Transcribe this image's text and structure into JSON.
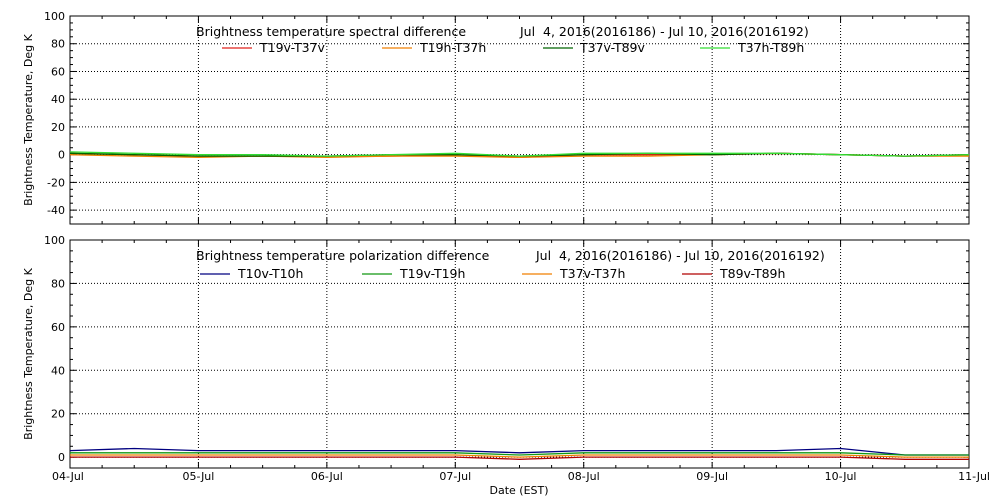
{
  "charts": [
    {
      "title": "Brightness temperature spectral difference",
      "date_range": "Jul  4, 2016(2016186) - Jul 10, 2016(2016192)",
      "ylabel": "Brightness Temperature, Deg K",
      "ylim": [
        -50,
        100
      ],
      "yticks": [
        "100",
        "80",
        "60",
        "40",
        "20",
        "0",
        "-20",
        "-40"
      ]
    },
    {
      "title": "Brightness temperature polarization difference",
      "date_range": "Jul  4, 2016(2016186) - Jul 10, 2016(2016192)",
      "ylabel": "Brightness Temperature, Deg K",
      "ylim": [
        -5,
        100
      ],
      "yticks": [
        "100",
        "80",
        "60",
        "40",
        "20",
        "0"
      ]
    }
  ],
  "xaxis": {
    "xlabel": "Date (EST)",
    "ticks": [
      "04-Jul",
      "05-Jul",
      "06-Jul",
      "07-Jul",
      "08-Jul",
      "09-Jul",
      "10-Jul",
      "11-Jul"
    ]
  },
  "chart_data": [
    {
      "type": "line",
      "title": "Brightness temperature spectral difference",
      "ylabel": "Brightness Temperature, Deg K",
      "ylim": [
        -50,
        100
      ],
      "xlim": [
        "2016-07-04",
        "2016-07-11"
      ],
      "x": [
        "2016-07-04",
        "2016-07-04T12:00",
        "2016-07-05",
        "2016-07-05T12:00",
        "2016-07-06",
        "2016-07-06T12:00",
        "2016-07-07",
        "2016-07-07T12:00",
        "2016-07-08",
        "2016-07-08T12:00",
        "2016-07-09",
        "2016-07-09T12:00",
        "2016-07-10",
        "2016-07-10T12:00",
        "2016-07-11"
      ],
      "series": [
        {
          "name": "T19v-T37v",
          "color": "#e0201a",
          "values": [
            1,
            0,
            -1,
            -1,
            -1,
            -1,
            0,
            -2,
            0,
            0,
            0,
            1,
            0,
            -1,
            0
          ]
        },
        {
          "name": "T19h-T37h",
          "color": "#f07f00",
          "values": [
            0,
            -1,
            -2,
            -1,
            -2,
            -1,
            -1,
            -2,
            -1,
            -1,
            0,
            1,
            0,
            -1,
            -1
          ]
        },
        {
          "name": "T37v-T89v",
          "color": "#006400",
          "values": [
            1,
            0,
            -1,
            -1,
            -1,
            0,
            0,
            -1,
            0,
            1,
            0,
            1,
            0,
            -1,
            0
          ]
        },
        {
          "name": "T37h-T89h",
          "color": "#33dd33",
          "values": [
            2,
            1,
            0,
            0,
            -1,
            0,
            1,
            -1,
            1,
            1,
            1,
            1,
            0,
            -1,
            0
          ]
        }
      ]
    },
    {
      "type": "line",
      "title": "Brightness temperature polarization difference",
      "ylabel": "Brightness Temperature, Deg K",
      "ylim": [
        -5,
        100
      ],
      "xlim": [
        "2016-07-04",
        "2016-07-11"
      ],
      "x": [
        "2016-07-04",
        "2016-07-04T12:00",
        "2016-07-05",
        "2016-07-05T12:00",
        "2016-07-06",
        "2016-07-06T12:00",
        "2016-07-07",
        "2016-07-07T12:00",
        "2016-07-08",
        "2016-07-08T12:00",
        "2016-07-09",
        "2016-07-09T12:00",
        "2016-07-10",
        "2016-07-10T12:00",
        "2016-07-11"
      ],
      "series": [
        {
          "name": "T10v-T10h",
          "color": "#000080",
          "values": [
            3,
            4,
            3,
            3,
            3,
            3,
            3,
            2,
            3,
            3,
            3,
            3,
            4,
            1,
            1
          ]
        },
        {
          "name": "T19v-T19h",
          "color": "#129812",
          "values": [
            2,
            2,
            2,
            2,
            2,
            2,
            2,
            1,
            2,
            2,
            2,
            2,
            2,
            1,
            1
          ]
        },
        {
          "name": "T37v-T37h",
          "color": "#f07f00",
          "values": [
            1,
            1,
            1,
            1,
            1,
            1,
            1,
            0,
            1,
            1,
            1,
            1,
            1,
            0,
            0
          ]
        },
        {
          "name": "T89v-T89h",
          "color": "#b00000",
          "values": [
            0,
            0,
            0,
            0,
            0,
            0,
            0,
            -1,
            0,
            0,
            0,
            0,
            0,
            -1,
            -1
          ]
        }
      ]
    }
  ]
}
